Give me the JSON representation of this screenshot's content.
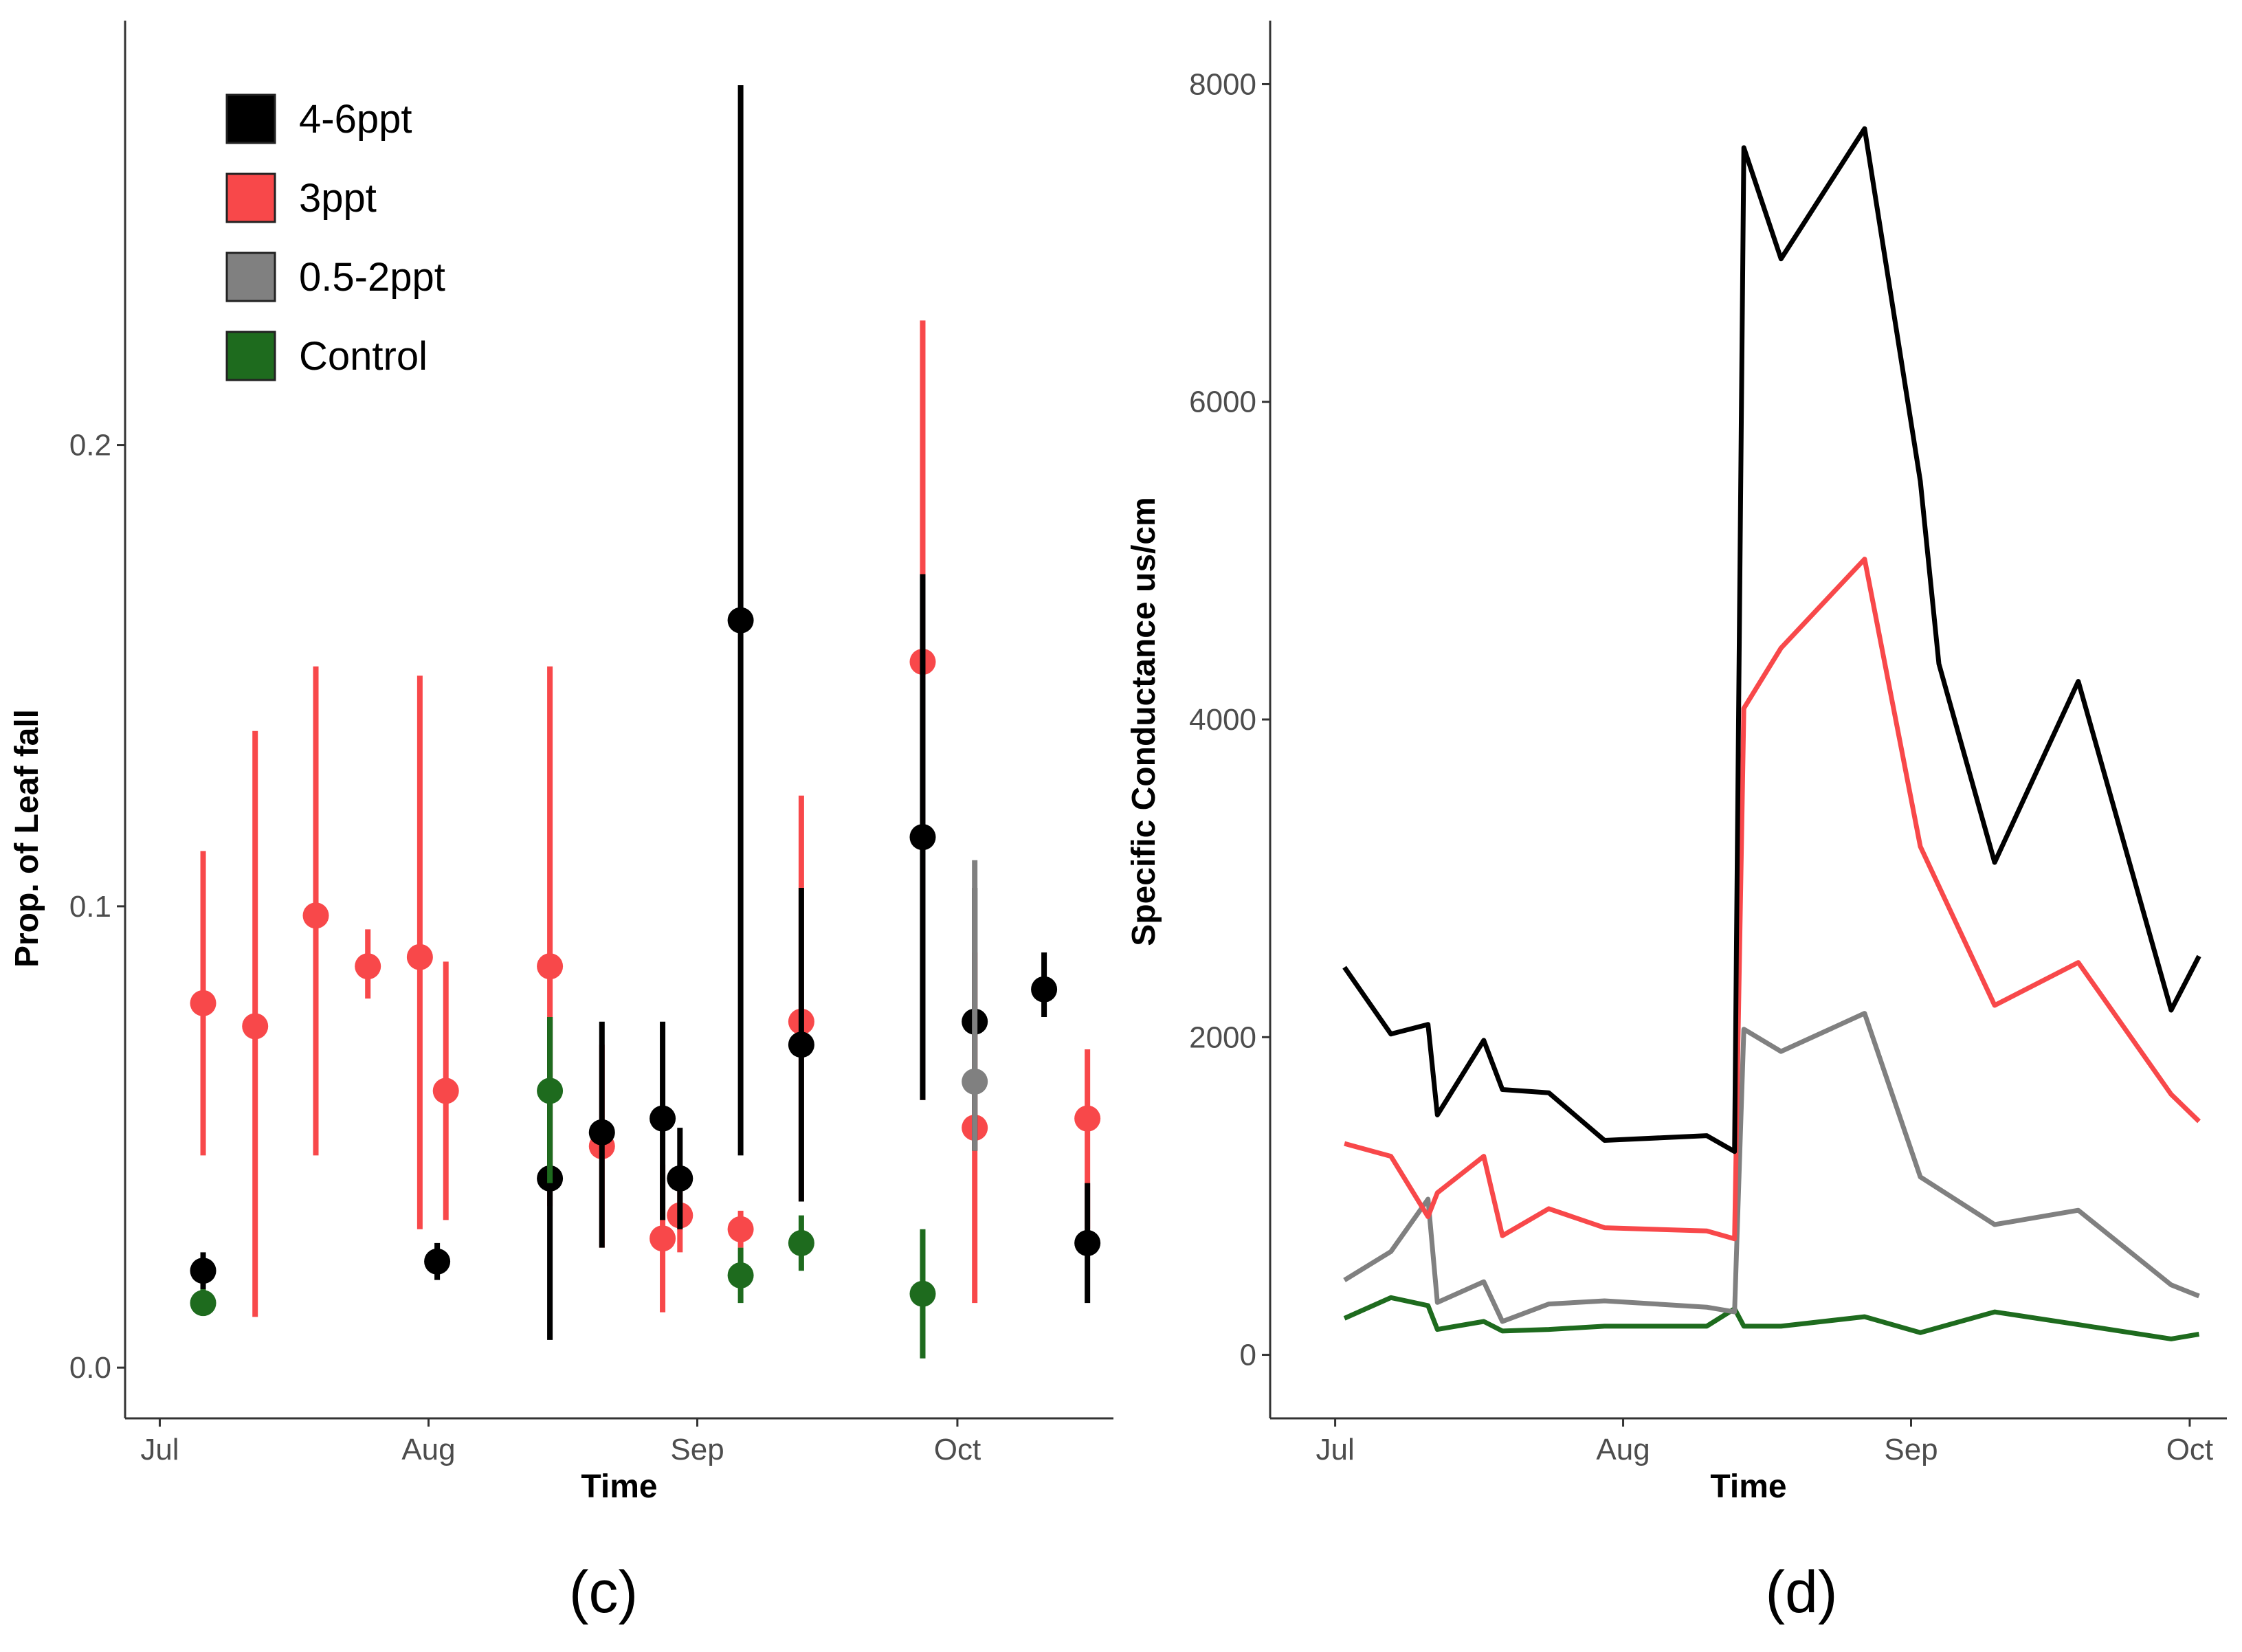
{
  "colors": {
    "4-6ppt": "#000000",
    "3ppt": "#f8484a",
    "0.5-2ppt": "#808080",
    "Control": "#1e6b1e",
    "axis": "#333333",
    "tick_text": "#4d4d4d"
  },
  "labels": {
    "panel_c": "(c)",
    "panel_d": "(d)"
  },
  "chart_data": [
    {
      "id": "c",
      "type": "scatter",
      "subtype": "pointrange",
      "title": "",
      "xlabel": "Time",
      "ylabel": "Prop. of Leaf fall",
      "x_unit": "day of year (Jul 1 = 0)",
      "xlim": [
        -4,
        110
      ],
      "ylim": [
        -0.011,
        0.292
      ],
      "x_ticks": [
        {
          "value": 0,
          "label": "Jul"
        },
        {
          "value": 31,
          "label": "Aug"
        },
        {
          "value": 62,
          "label": "Sep"
        },
        {
          "value": 92,
          "label": "Oct"
        }
      ],
      "y_ticks": [
        {
          "value": 0.0,
          "label": "0.0"
        },
        {
          "value": 0.1,
          "label": "0.1"
        },
        {
          "value": 0.2,
          "label": "0.2"
        }
      ],
      "grid": false,
      "legend": {
        "position": "top-left",
        "entries": [
          {
            "label": "4-6ppt",
            "color_key": "4-6ppt"
          },
          {
            "label": "3ppt",
            "color_key": "3ppt"
          },
          {
            "label": "0.5-2ppt",
            "color_key": "0.5-2ppt"
          },
          {
            "label": "Control",
            "color_key": "Control"
          }
        ]
      },
      "series": [
        {
          "name": "3ppt",
          "color_key": "3ppt",
          "points": [
            {
              "x": 5,
              "y": 0.079,
              "lo": 0.046,
              "hi": 0.112
            },
            {
              "x": 11,
              "y": 0.074,
              "lo": 0.011,
              "hi": 0.138
            },
            {
              "x": 18,
              "y": 0.098,
              "lo": 0.046,
              "hi": 0.152
            },
            {
              "x": 24,
              "y": 0.087,
              "lo": 0.08,
              "hi": 0.095
            },
            {
              "x": 30,
              "y": 0.089,
              "lo": 0.03,
              "hi": 0.15
            },
            {
              "x": 33,
              "y": 0.06,
              "lo": 0.032,
              "hi": 0.088
            },
            {
              "x": 45,
              "y": 0.087,
              "lo": 0.035,
              "hi": 0.152
            },
            {
              "x": 51,
              "y": 0.048,
              "lo": 0.026,
              "hi": 0.07
            },
            {
              "x": 58,
              "y": 0.028,
              "lo": 0.012,
              "hi": 0.044
            },
            {
              "x": 60,
              "y": 0.033,
              "lo": 0.025,
              "hi": 0.041
            },
            {
              "x": 67,
              "y": 0.03,
              "lo": 0.026,
              "hi": 0.034
            },
            {
              "x": 74,
              "y": 0.075,
              "lo": 0.036,
              "hi": 0.124
            },
            {
              "x": 88,
              "y": 0.153,
              "lo": 0.058,
              "hi": 0.227
            },
            {
              "x": 94,
              "y": 0.052,
              "lo": 0.014,
              "hi": 0.09
            },
            {
              "x": 107,
              "y": 0.054,
              "lo": 0.03,
              "hi": 0.069
            }
          ]
        },
        {
          "name": "4-6ppt",
          "color_key": "4-6ppt",
          "points": [
            {
              "x": 5,
              "y": 0.021,
              "lo": 0.017,
              "hi": 0.025
            },
            {
              "x": 32,
              "y": 0.023,
              "lo": 0.019,
              "hi": 0.027
            },
            {
              "x": 45,
              "y": 0.041,
              "lo": 0.006,
              "hi": 0.076
            },
            {
              "x": 51,
              "y": 0.051,
              "lo": 0.026,
              "hi": 0.075
            },
            {
              "x": 58,
              "y": 0.054,
              "lo": 0.032,
              "hi": 0.075
            },
            {
              "x": 60,
              "y": 0.041,
              "lo": 0.03,
              "hi": 0.052
            },
            {
              "x": 67,
              "y": 0.162,
              "lo": 0.046,
              "hi": 0.278
            },
            {
              "x": 74,
              "y": 0.07,
              "lo": 0.036,
              "hi": 0.104
            },
            {
              "x": 88,
              "y": 0.115,
              "lo": 0.058,
              "hi": 0.172
            },
            {
              "x": 94,
              "y": 0.075,
              "lo": 0.047,
              "hi": 0.104
            },
            {
              "x": 102,
              "y": 0.082,
              "lo": 0.076,
              "hi": 0.09
            },
            {
              "x": 107,
              "y": 0.027,
              "lo": 0.014,
              "hi": 0.04
            }
          ]
        },
        {
          "name": "0.5-2ppt",
          "color_key": "0.5-2ppt",
          "points": [
            {
              "x": 94,
              "y": 0.062,
              "lo": 0.047,
              "hi": 0.11
            }
          ]
        },
        {
          "name": "Control",
          "color_key": "Control",
          "points": [
            {
              "x": 5,
              "y": 0.014,
              "lo": 0.012,
              "hi": 0.017
            },
            {
              "x": 45,
              "y": 0.06,
              "lo": 0.04,
              "hi": 0.076
            },
            {
              "x": 67,
              "y": 0.02,
              "lo": 0.014,
              "hi": 0.026
            },
            {
              "x": 74,
              "y": 0.027,
              "lo": 0.021,
              "hi": 0.033
            },
            {
              "x": 88,
              "y": 0.016,
              "lo": 0.002,
              "hi": 0.03
            }
          ]
        }
      ]
    },
    {
      "id": "d",
      "type": "line",
      "title": "",
      "xlabel": "Time",
      "ylabel": "Specific Conductance us/cm",
      "x_unit": "day of year (Jul 1 = 0)",
      "xlim": [
        -7,
        96
      ],
      "ylim": [
        -400,
        8400
      ],
      "x_ticks": [
        {
          "value": 0,
          "label": "Jul"
        },
        {
          "value": 31,
          "label": "Aug"
        },
        {
          "value": 62,
          "label": "Sep"
        },
        {
          "value": 92,
          "label": "Oct"
        }
      ],
      "y_ticks": [
        {
          "value": 0,
          "label": "0"
        },
        {
          "value": 2000,
          "label": "2000"
        },
        {
          "value": 4000,
          "label": "4000"
        },
        {
          "value": 6000,
          "label": "6000"
        },
        {
          "value": 8000,
          "label": "8000"
        }
      ],
      "grid": false,
      "legend": null,
      "series": [
        {
          "name": "4-6ppt",
          "color_key": "4-6ppt",
          "x": [
            1,
            6,
            10,
            11,
            16,
            18,
            23,
            29,
            40,
            43,
            44,
            48,
            57,
            63,
            65,
            71,
            80,
            90,
            93
          ],
          "y": [
            2440,
            2020,
            2080,
            1510,
            1980,
            1670,
            1650,
            1350,
            1380,
            1280,
            7600,
            6900,
            7720,
            5500,
            4350,
            3100,
            4240,
            2170,
            2510
          ]
        },
        {
          "name": "3ppt",
          "color_key": "3ppt",
          "x": [
            1,
            6,
            10,
            11,
            16,
            18,
            23,
            29,
            40,
            43,
            44,
            48,
            57,
            63,
            71,
            80,
            90,
            93
          ],
          "y": [
            1330,
            1250,
            870,
            1020,
            1250,
            750,
            920,
            800,
            780,
            730,
            4070,
            4450,
            5010,
            3200,
            2200,
            2470,
            1640,
            1470
          ]
        },
        {
          "name": "0.5-2ppt",
          "color_key": "0.5-2ppt",
          "x": [
            1,
            6,
            10,
            11,
            16,
            18,
            23,
            29,
            40,
            43,
            44,
            48,
            57,
            63,
            71,
            80,
            90,
            93
          ],
          "y": [
            470,
            650,
            980,
            330,
            460,
            210,
            320,
            340,
            300,
            270,
            2050,
            1910,
            2150,
            1120,
            820,
            910,
            440,
            370
          ]
        },
        {
          "name": "Control",
          "color_key": "Control",
          "x": [
            1,
            6,
            10,
            11,
            16,
            18,
            23,
            29,
            40,
            43,
            44,
            48,
            57,
            63,
            71,
            80,
            90,
            93
          ],
          "y": [
            230,
            360,
            310,
            160,
            210,
            150,
            160,
            180,
            180,
            290,
            180,
            180,
            240,
            140,
            270,
            190,
            100,
            130
          ]
        }
      ]
    }
  ]
}
